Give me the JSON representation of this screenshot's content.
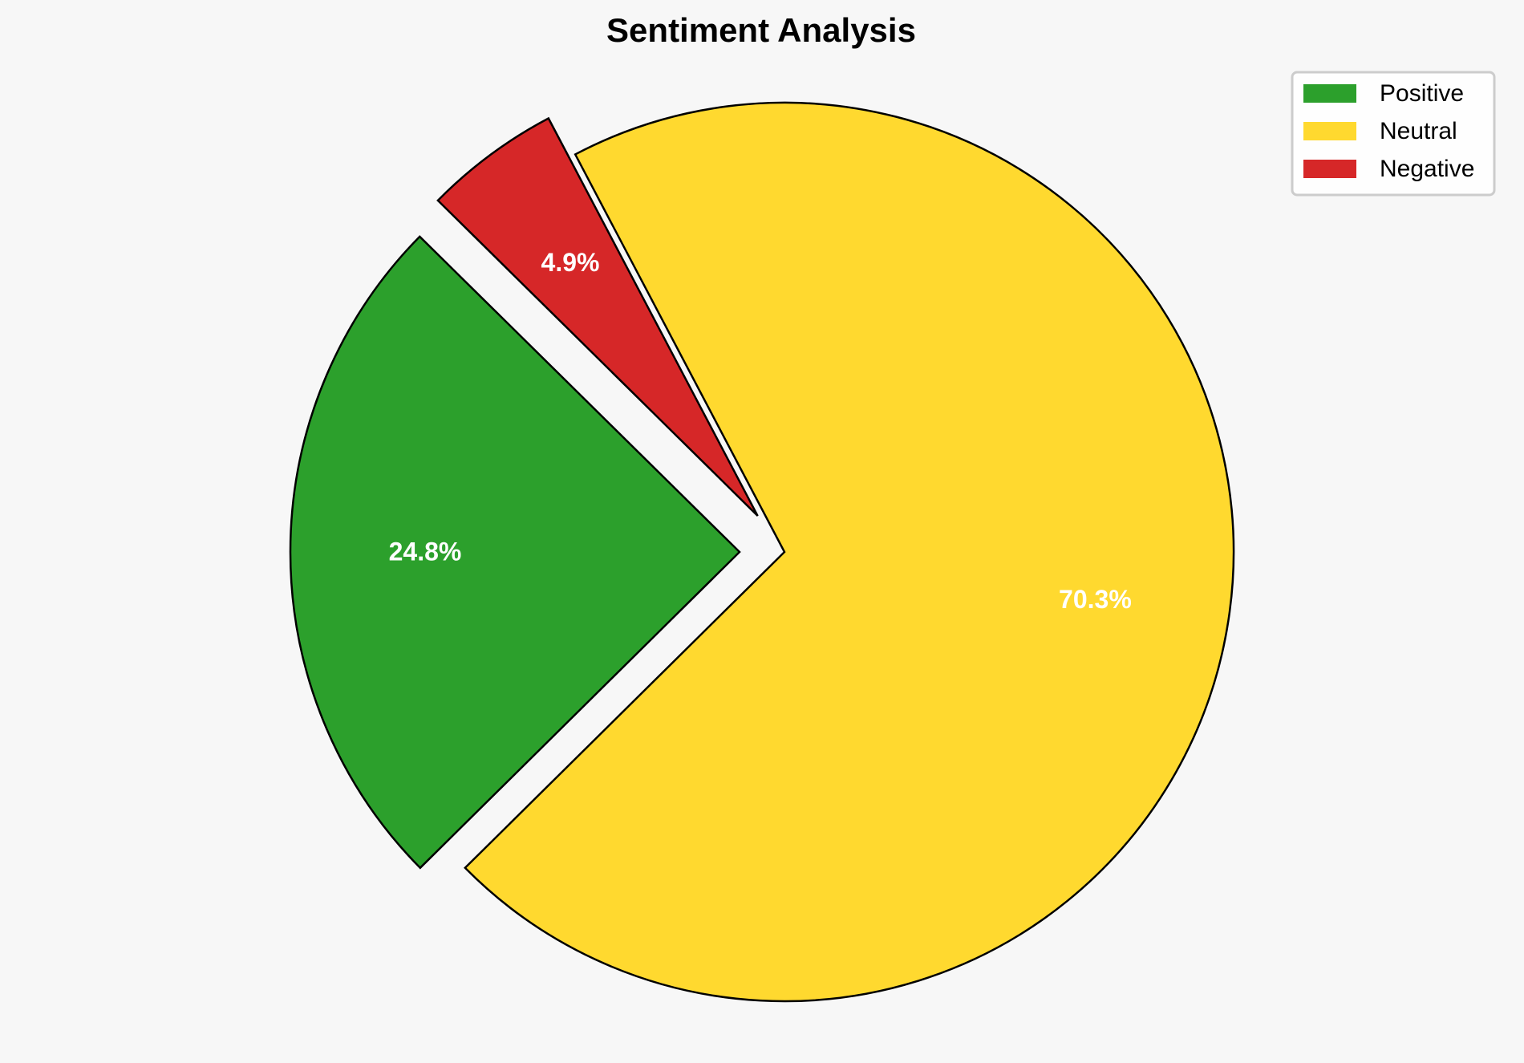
{
  "chart_data": {
    "type": "pie",
    "title": "Sentiment Analysis",
    "categories": [
      "Positive",
      "Neutral",
      "Negative"
    ],
    "values": [
      24.8,
      70.3,
      4.9
    ],
    "labels": [
      "24.8%",
      "70.3%",
      "4.9%"
    ],
    "colors": [
      "#2ca02c",
      "#ffd92f",
      "#d62728"
    ],
    "explode": [
      0.1,
      0,
      0.1
    ],
    "start_angle": 135.4,
    "direction": "counterclockwise",
    "legend_placement": "top-right",
    "background": "#f7f7f7"
  }
}
